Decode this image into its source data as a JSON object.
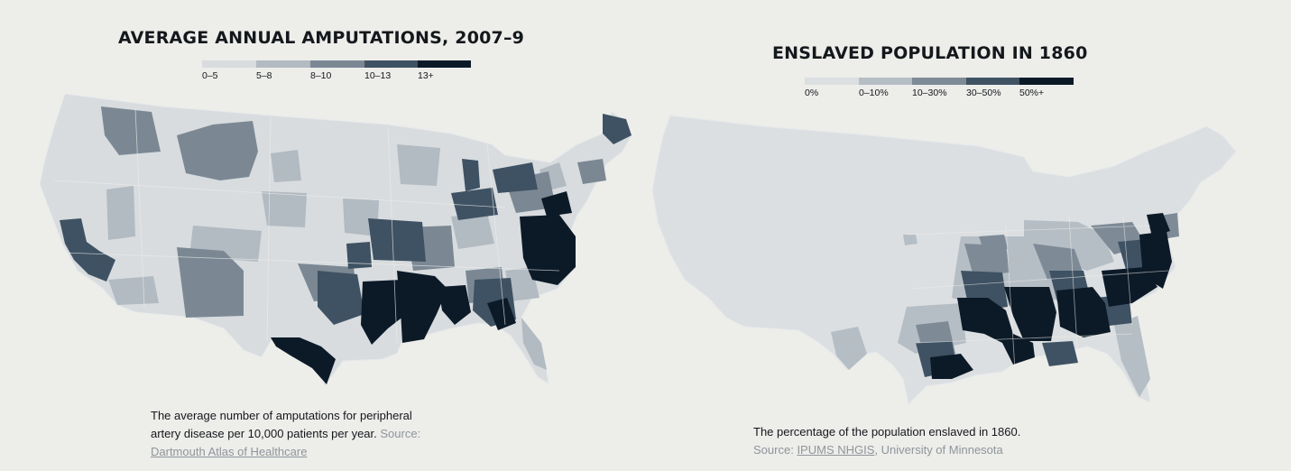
{
  "amputations_map": {
    "title": "AVERAGE ANNUAL AMPUTATIONS, 2007–9",
    "legend": [
      {
        "label": "0–5",
        "color": "#d8dcdf"
      },
      {
        "label": "5–8",
        "color": "#b2bac2"
      },
      {
        "label": "8–10",
        "color": "#7b8894"
      },
      {
        "label": "10–13",
        "color": "#3f5263"
      },
      {
        "label": "13+",
        "color": "#0c1a28"
      }
    ],
    "caption": {
      "line1": "The average number of amputations for peripheral",
      "line2": "artery disease per 10,000 patients per year.",
      "source_prefix": "Source:",
      "source_link": "Dartmouth Atlas of Healthcare"
    }
  },
  "enslaved_map": {
    "title": "ENSLAVED POPULATION IN 1860",
    "legend": [
      {
        "label": "0%",
        "color": "#dcdfe1"
      },
      {
        "label": "0–10%",
        "color": "#b6bec5"
      },
      {
        "label": "10–30%",
        "color": "#7e8b97"
      },
      {
        "label": "30–50%",
        "color": "#3f5263"
      },
      {
        "label": "50%+",
        "color": "#0c1a28"
      }
    ],
    "caption": {
      "line1": "The percentage of the population enslaved in 1860.",
      "source_prefix": "Source:",
      "source_link": "IPUMS NHGIS",
      "source_suffix": ", University of Minnesota"
    }
  }
}
